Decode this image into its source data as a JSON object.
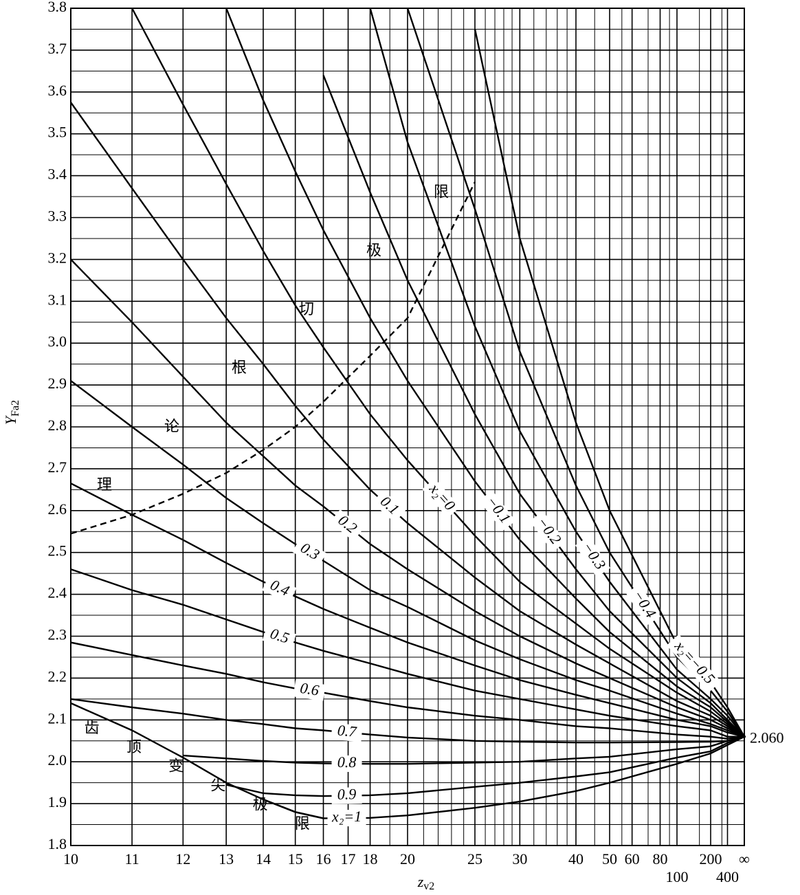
{
  "chart_data": {
    "type": "line",
    "xscale": "reciprocal",
    "xlabel": "z",
    "xlabel_sub": "v2",
    "ylabel": "Y",
    "ylabel_sub": "Fa2",
    "xlim": [
      10,
      null
    ],
    "ylim": [
      1.8,
      3.8
    ],
    "xticks": [
      10,
      11,
      12,
      13,
      14,
      15,
      16,
      17,
      18,
      20,
      25,
      30,
      40,
      50,
      60,
      80,
      100,
      200,
      400,
      {
        "value": null,
        "label": "∞"
      }
    ],
    "xminor": [
      19,
      21,
      22,
      23,
      24,
      26,
      27,
      28,
      29,
      32,
      34,
      36,
      38,
      45,
      55,
      70,
      90,
      150,
      300
    ],
    "yticks": [
      1.8,
      1.9,
      {
        "value": 2,
        "label": "2.0"
      },
      2.1,
      2.2,
      2.3,
      2.4,
      2.5,
      2.6,
      2.7,
      2.8,
      2.9,
      {
        "value": 3,
        "label": "3.0"
      },
      3.1,
      3.2,
      3.3,
      3.4,
      3.5,
      3.6,
      3.7,
      3.8
    ],
    "yminor": [
      1.85,
      1.95,
      2.05,
      2.15,
      2.25,
      2.35,
      2.45,
      2.55,
      2.65,
      2.75,
      2.85,
      2.95,
      3.05,
      3.15,
      3.25,
      3.35,
      3.45,
      3.55,
      3.65,
      3.75
    ],
    "grid": true,
    "limit": {
      "value": 2.06,
      "label": "2.060"
    },
    "x": [
      10,
      11,
      12,
      13,
      14,
      15,
      16,
      18,
      20,
      25,
      30,
      40,
      50,
      100,
      200,
      400
    ],
    "series": [
      {
        "name": "x₂=−0.5",
        "color": "#000000",
        "values": [
          null,
          null,
          null,
          null,
          null,
          null,
          null,
          null,
          null,
          3.75,
          3.25,
          2.81,
          2.6,
          2.28,
          2.19,
          2.13
        ]
      },
      {
        "name": "−0.4",
        "color": "#000000",
        "values": [
          null,
          null,
          null,
          null,
          null,
          null,
          null,
          null,
          3.8,
          3.32,
          2.98,
          2.66,
          2.5,
          2.25,
          2.17,
          2.12
        ]
      },
      {
        "name": "−0.3",
        "color": "#000000",
        "values": [
          null,
          null,
          null,
          null,
          null,
          null,
          null,
          3.8,
          3.48,
          3.04,
          2.79,
          2.55,
          2.43,
          2.22,
          2.15,
          2.11
        ]
      },
      {
        "name": "−0.2",
        "color": "#000000",
        "values": [
          null,
          null,
          null,
          null,
          null,
          null,
          3.64,
          3.36,
          3.15,
          2.83,
          2.64,
          2.46,
          2.36,
          2.2,
          2.14,
          2.1
        ]
      },
      {
        "name": "−0.1",
        "color": "#000000",
        "values": [
          null,
          null,
          null,
          3.8,
          3.58,
          3.41,
          3.27,
          3.06,
          2.91,
          2.67,
          2.53,
          2.39,
          2.31,
          2.18,
          2.13,
          2.095
        ]
      },
      {
        "name": "x₂=0",
        "color": "#000000",
        "values": [
          null,
          3.8,
          3.57,
          3.38,
          3.22,
          3.09,
          2.99,
          2.83,
          2.72,
          2.54,
          2.43,
          2.33,
          2.27,
          2.165,
          2.12,
          2.09
        ]
      },
      {
        "name": "0.1",
        "color": "#000000",
        "values": [
          3.575,
          3.37,
          3.2,
          3.06,
          2.95,
          2.85,
          2.77,
          2.65,
          2.57,
          2.44,
          2.36,
          2.28,
          2.235,
          2.145,
          2.11,
          2.085
        ]
      },
      {
        "name": "0.2",
        "color": "#000000",
        "values": [
          3.2,
          3.05,
          2.92,
          2.81,
          2.73,
          2.66,
          2.61,
          2.52,
          2.46,
          2.36,
          2.3,
          2.235,
          2.2,
          2.13,
          2.1,
          2.08
        ]
      },
      {
        "name": "0.3",
        "color": "#000000",
        "values": [
          2.91,
          2.8,
          2.71,
          2.63,
          2.57,
          2.52,
          2.48,
          2.41,
          2.37,
          2.29,
          2.245,
          2.195,
          2.17,
          2.115,
          2.09,
          2.075
        ]
      },
      {
        "name": "0.4",
        "color": "#000000",
        "values": [
          2.665,
          2.59,
          2.53,
          2.475,
          2.43,
          2.395,
          2.365,
          2.32,
          2.285,
          2.23,
          2.195,
          2.16,
          2.14,
          2.1,
          2.085,
          2.07
        ]
      },
      {
        "name": "0.5",
        "color": "#000000",
        "values": [
          2.46,
          2.41,
          2.375,
          2.34,
          2.31,
          2.285,
          2.265,
          2.235,
          2.21,
          2.17,
          2.15,
          2.125,
          2.11,
          2.085,
          2.075,
          2.06
        ]
      },
      {
        "name": "0.6",
        "color": "#000000",
        "values": [
          2.285,
          2.255,
          2.23,
          2.21,
          2.19,
          2.175,
          2.165,
          2.145,
          2.13,
          2.11,
          2.1,
          2.085,
          2.08,
          2.065,
          2.06,
          2.055
        ]
      },
      {
        "name": "0.7",
        "color": "#000000",
        "values": [
          2.15,
          2.13,
          2.115,
          2.1,
          2.09,
          2.08,
          2.075,
          2.065,
          2.058,
          2.05,
          2.048,
          2.046,
          2.046,
          2.047,
          2.048,
          2.05
        ]
      },
      {
        "name": "0.8",
        "color": "#000000",
        "values": [
          null,
          null,
          2.015,
          2.008,
          2.002,
          1.998,
          1.996,
          1.995,
          1.995,
          1.998,
          2.0,
          2.008,
          2.012,
          2.03,
          2.037,
          2.05
        ]
      },
      {
        "name": "0.9",
        "color": "#000000",
        "values": [
          null,
          null,
          null,
          1.945,
          1.925,
          1.92,
          1.918,
          1.92,
          1.925,
          1.94,
          1.95,
          1.965,
          1.975,
          2.01,
          2.025,
          2.045
        ]
      },
      {
        "name": "x₂=1",
        "color": "#000000",
        "values": [
          null,
          null,
          null,
          null,
          1.91,
          1.88,
          1.865,
          1.866,
          1.872,
          1.89,
          1.905,
          1.93,
          1.95,
          1.995,
          2.02,
          2.04
        ]
      },
      {
        "name": "齿顶变尖极限",
        "color": "#000000",
        "values": [
          2.14,
          2.075,
          2.01,
          1.95,
          1.91,
          1.88,
          1.865,
          null,
          null,
          null,
          null,
          null,
          null,
          null,
          null,
          null
        ]
      },
      {
        "name": "理论根切极限",
        "color": "#000000",
        "dash": true,
        "values": [
          2.545,
          2.59,
          2.64,
          2.69,
          2.745,
          2.8,
          2.86,
          2.97,
          3.06,
          3.385,
          null,
          null,
          null,
          null,
          null,
          null
        ]
      }
    ]
  }
}
